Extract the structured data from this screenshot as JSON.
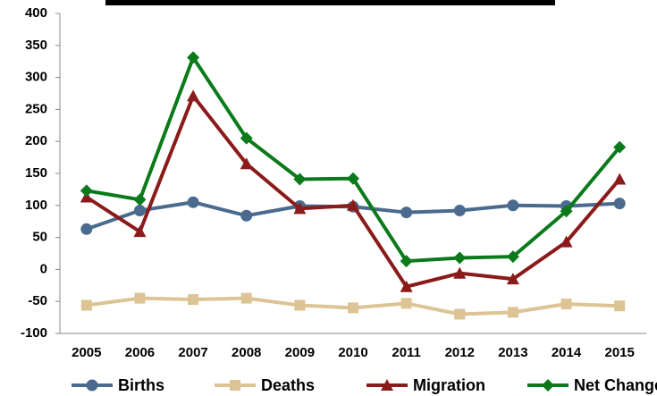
{
  "chart_data": {
    "type": "line",
    "categories": [
      "2005",
      "2006",
      "2007",
      "2008",
      "2009",
      "2010",
      "2011",
      "2012",
      "2013",
      "2014",
      "2015"
    ],
    "series": [
      {
        "name": "Births",
        "color": "#4a6a8e",
        "values": [
          63,
          92,
          105,
          84,
          99,
          98,
          89,
          92,
          100,
          99,
          103
        ]
      },
      {
        "name": "Deaths",
        "color": "#ddc494",
        "values": [
          -56,
          -45,
          -47,
          -45,
          -56,
          -60,
          -53,
          -70,
          -67,
          -54,
          -57
        ]
      },
      {
        "name": "Migration",
        "color": "#8b1a1a",
        "values": [
          113,
          59,
          271,
          165,
          95,
          100,
          -27,
          -6,
          -15,
          43,
          141
        ]
      },
      {
        "name": "Net Change",
        "color": "#0a7a1a",
        "values": [
          123,
          109,
          331,
          205,
          141,
          142,
          13,
          18,
          20,
          91,
          191
        ]
      }
    ],
    "ylim": [
      -100,
      400
    ],
    "yticks": [
      -100,
      -50,
      0,
      50,
      100,
      150,
      200,
      250,
      300,
      350,
      400
    ],
    "grid": false,
    "legend": "bottom"
  }
}
